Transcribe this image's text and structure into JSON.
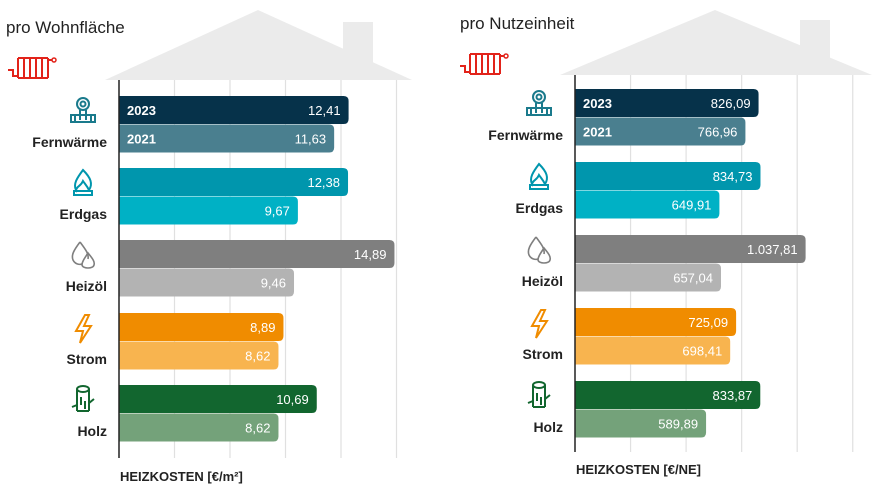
{
  "colors": {
    "Fernwärme": [
      "#06324a",
      "#4a7f8f"
    ],
    "Erdgas": [
      "#0096ad",
      "#00b1c5"
    ],
    "Heizöl": [
      "#7f7f7f",
      "#b3b3b3"
    ],
    "Strom": [
      "#f08c00",
      "#f8b44f"
    ],
    "Holz": [
      "#12662f",
      "#74a27a"
    ],
    "icon": {
      "Fernwärme": "#1a7a8c",
      "Erdgas": "#0096ad",
      "Heizöl": "#7f7f7f",
      "Strom": "#f08c00",
      "Holz": "#12662f"
    },
    "radiator": "#e2231a",
    "house": "#ebebeb"
  },
  "chart_data": [
    {
      "type": "bar",
      "title": "pro Wohnfläche",
      "xlabel": "HEIZKOSTEN [€/m²]",
      "categories": [
        "Fernwärme",
        "Erdgas",
        "Heizöl",
        "Strom",
        "Holz"
      ],
      "series": [
        {
          "name": "2023",
          "values": [
            12.41,
            12.38,
            14.89,
            8.89,
            10.69
          ],
          "labels": [
            "12,41",
            "12,38",
            "14,89",
            "8,89",
            "10,69"
          ]
        },
        {
          "name": "2021",
          "values": [
            11.63,
            9.67,
            9.46,
            8.62,
            8.62
          ],
          "labels": [
            "11,63",
            "9,67",
            "9,46",
            "8,62",
            "8,62"
          ]
        }
      ],
      "xlim": [
        0,
        15
      ],
      "grid_step": 3,
      "grid": true,
      "orientation": "horizontal"
    },
    {
      "type": "bar",
      "title": "pro Nutzeinheit",
      "xlabel": "HEIZKOSTEN [€/NE]",
      "categories": [
        "Fernwärme",
        "Erdgas",
        "Heizöl",
        "Strom",
        "Holz"
      ],
      "series": [
        {
          "name": "2023",
          "values": [
            826.09,
            834.73,
            1037.81,
            725.09,
            833.87
          ],
          "labels": [
            "826,09",
            "834,73",
            "1.037,81",
            "725,09",
            "833,87"
          ]
        },
        {
          "name": "2021",
          "values": [
            766.96,
            649.91,
            657.04,
            698.41,
            589.89
          ],
          "labels": [
            "766,96",
            "649,91",
            "657,04",
            "698,41",
            "589,89"
          ]
        }
      ],
      "xlim": [
        0,
        1250
      ],
      "grid_step": 250,
      "grid": true,
      "orientation": "horizontal"
    }
  ],
  "icons": {
    "Fernwärme": "district-heating-icon",
    "Erdgas": "gas-flame-icon",
    "Heizöl": "oil-drops-icon",
    "Strom": "lightning-icon",
    "Holz": "wood-log-icon",
    "header": "radiator-icon"
  }
}
